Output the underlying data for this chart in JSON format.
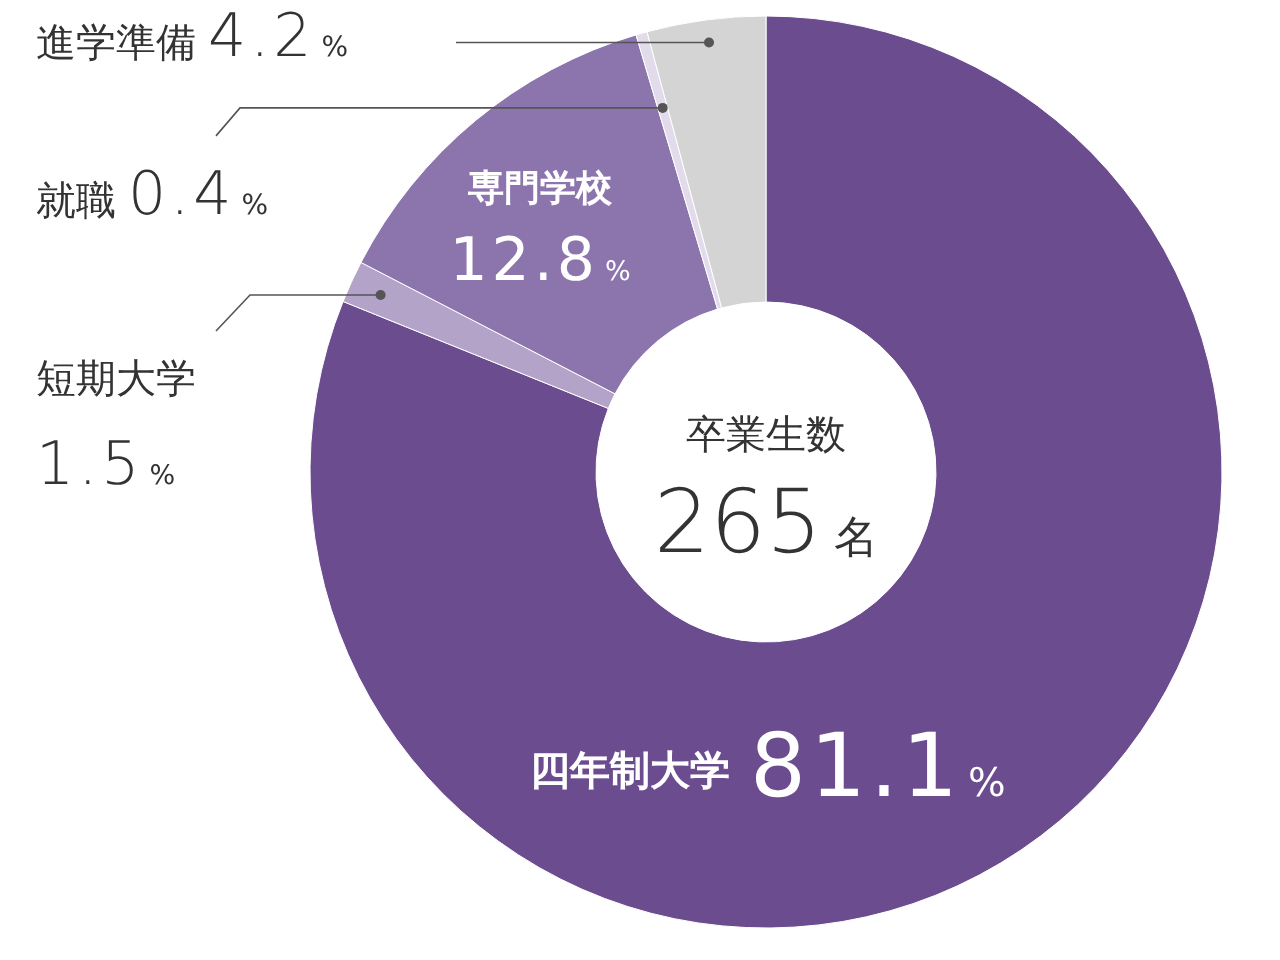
{
  "chart_data": {
    "type": "donut",
    "categories": [
      "四年制大学",
      "短期大学",
      "専門学校",
      "就職",
      "進学準備"
    ],
    "values": [
      81.1,
      1.5,
      12.8,
      0.4,
      4.2
    ],
    "value_labels": [
      "81.1%",
      "1.5%",
      "12.8%",
      "0.4%",
      "4.2%"
    ],
    "colors": [
      "#6b4c8f",
      "#b3a3c9",
      "#8c74ad",
      "#e2dbeb",
      "#d4d4d4"
    ],
    "annotations": [
      "卒業生数",
      "265名"
    ]
  }
}
